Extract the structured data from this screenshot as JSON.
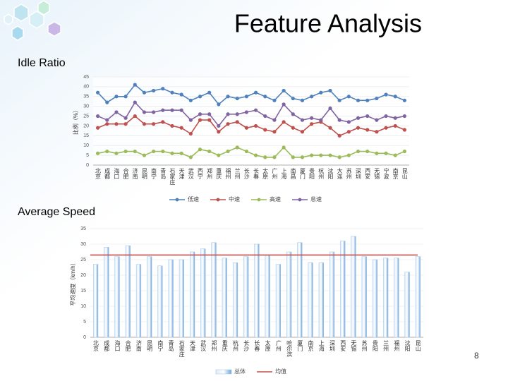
{
  "slide": {
    "title": "Feature Analysis",
    "page": "8"
  },
  "chart_data": [
    {
      "type": "line",
      "title": "Idle Ratio",
      "ylabel": "比例（%）",
      "categories": [
        "北京",
        "成都",
        "海口",
        "合肥",
        "济南",
        "昆明",
        "南宁",
        "青岛",
        "石家庄",
        "天津",
        "武汉",
        "西宁",
        "郑州",
        "重庆",
        "福州",
        "兰州",
        "长沙",
        "长春",
        "太原",
        "广州",
        "上海",
        "南昌",
        "厦门",
        "贵阳",
        "杭州",
        "沈阳",
        "大连",
        "苏州",
        "深圳",
        "西安",
        "无锡",
        "宁波",
        "南京",
        "昆山"
      ],
      "series": [
        {
          "name": "低速",
          "color": "#4f81bd",
          "values": [
            37,
            32,
            35,
            35,
            41,
            37,
            38,
            39,
            37,
            36,
            33,
            35,
            37,
            31,
            35,
            34,
            35,
            37,
            35,
            33,
            38,
            34,
            33,
            35,
            37,
            38,
            33,
            35,
            33,
            33,
            34,
            36,
            35,
            33
          ]
        },
        {
          "name": "中速",
          "color": "#c0504d",
          "values": [
            19,
            21,
            21,
            21,
            25,
            21,
            21,
            22,
            20,
            19,
            16,
            23,
            23,
            17,
            21,
            22,
            19,
            20,
            18,
            17,
            22,
            19,
            17,
            21,
            22,
            19,
            15,
            17,
            19,
            18,
            17,
            19,
            20,
            18
          ]
        },
        {
          "name": "高速",
          "color": "#9bbb59",
          "values": [
            6,
            7,
            6,
            7,
            7,
            5,
            7,
            7,
            6,
            6,
            4,
            8,
            7,
            5,
            7,
            9,
            7,
            5,
            4,
            4,
            9,
            4,
            4,
            5,
            5,
            5,
            4,
            5,
            7,
            7,
            6,
            6,
            5,
            7
          ]
        },
        {
          "name": "怠速",
          "color": "#8064a2",
          "values": [
            25,
            23,
            27,
            24,
            32,
            27,
            27,
            28,
            28,
            28,
            23,
            26,
            26,
            20,
            26,
            26,
            27,
            28,
            25,
            23,
            31,
            26,
            23,
            24,
            23,
            29,
            23,
            22,
            24,
            25,
            23,
            25,
            24,
            25
          ]
        }
      ],
      "ylim": [
        0,
        45
      ],
      "yticks": [
        0,
        5,
        10,
        15,
        20,
        25,
        30,
        35,
        40,
        45
      ],
      "grid": true
    },
    {
      "type": "bar",
      "title": "Average Speed",
      "ylabel": "平均速度（km/h）",
      "categories": [
        "北京",
        "成都",
        "海口",
        "合肥",
        "济南",
        "昆明",
        "南宁",
        "青岛",
        "石家庄",
        "天津",
        "武汉",
        "郑州",
        "重庆",
        "杭州",
        "长沙",
        "长春",
        "太原",
        "广州",
        "哈尔滨",
        "厦门",
        "南京",
        "上海",
        "深圳",
        "西安",
        "无锡",
        "苏州",
        "贵阳",
        "兰州",
        "福州",
        "沈阳",
        "昆山"
      ],
      "series": [
        {
          "name": "总体",
          "color": "#9dc3e6",
          "values": [
            23.5,
            29,
            26,
            29.5,
            23.5,
            26,
            23,
            25,
            25,
            27.5,
            28.5,
            30.5,
            25.5,
            24,
            26,
            30,
            26.5,
            23.5,
            27.5,
            30.5,
            24,
            24,
            27.5,
            31,
            32.5,
            26,
            25,
            25.5,
            25.5,
            21,
            26
          ]
        }
      ],
      "mean_line": {
        "name": "均值",
        "color": "#c0504d",
        "value": 26.5
      },
      "ylim": [
        0,
        35
      ],
      "yticks": [
        0,
        5,
        10,
        15,
        20,
        25,
        30,
        35
      ],
      "grid": true
    }
  ]
}
